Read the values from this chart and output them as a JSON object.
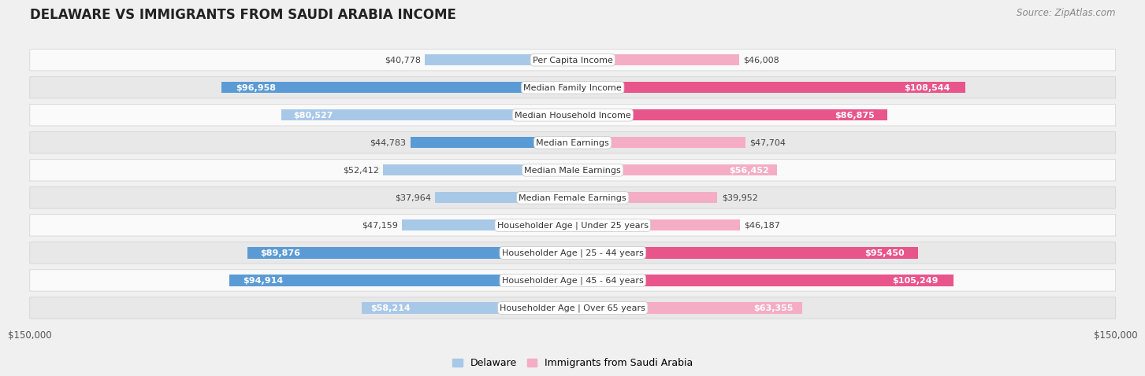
{
  "title": "DELAWARE VS IMMIGRANTS FROM SAUDI ARABIA INCOME",
  "source": "Source: ZipAtlas.com",
  "categories": [
    "Per Capita Income",
    "Median Family Income",
    "Median Household Income",
    "Median Earnings",
    "Median Male Earnings",
    "Median Female Earnings",
    "Householder Age | Under 25 years",
    "Householder Age | 25 - 44 years",
    "Householder Age | 45 - 64 years",
    "Householder Age | Over 65 years"
  ],
  "delaware_values": [
    40778,
    96958,
    80527,
    44783,
    52412,
    37964,
    47159,
    89876,
    94914,
    58214
  ],
  "immigrant_values": [
    46008,
    108544,
    86875,
    47704,
    56452,
    39952,
    46187,
    95450,
    105249,
    63355
  ],
  "delaware_labels": [
    "$40,778",
    "$96,958",
    "$80,527",
    "$44,783",
    "$52,412",
    "$37,964",
    "$47,159",
    "$89,876",
    "$94,914",
    "$58,214"
  ],
  "immigrant_labels": [
    "$46,008",
    "$108,544",
    "$86,875",
    "$47,704",
    "$56,452",
    "$39,952",
    "$46,187",
    "$95,450",
    "$105,249",
    "$63,355"
  ],
  "max_value": 150000,
  "delaware_color_light": "#a8c8e8",
  "delaware_color_dark": "#5b9bd5",
  "immigrant_color_light": "#f4adc4",
  "immigrant_color_dark": "#e8558a",
  "delaware_dark_rows": [
    1,
    3,
    7,
    8
  ],
  "immigrant_dark_rows": [
    1,
    2,
    7,
    8
  ],
  "bg_color": "#f0f0f0",
  "row_bg_light": "#fafafa",
  "row_bg_dark": "#e8e8e8",
  "label_box_color": "#ffffff",
  "label_box_edge": "#cccccc",
  "title_fontsize": 12,
  "source_fontsize": 8.5,
  "value_fontsize": 8,
  "category_fontsize": 8,
  "legend_fontsize": 9,
  "axis_label_fontsize": 8.5,
  "inside_label_threshold": 55000
}
